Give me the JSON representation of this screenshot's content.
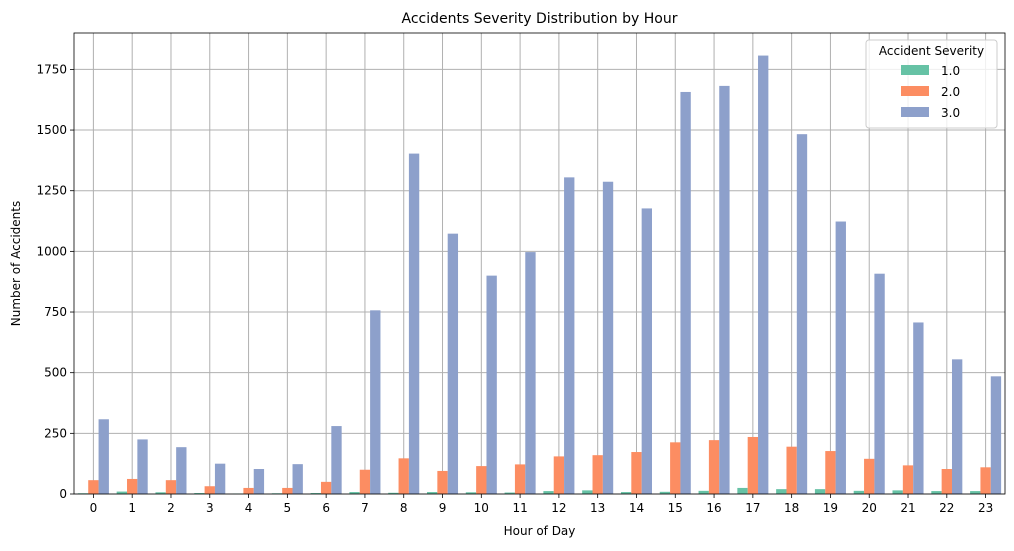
{
  "chart_data": {
    "type": "bar",
    "title": "Accidents Severity Distribution by Hour",
    "xlabel": "Hour of Day",
    "ylabel": "Number of Accidents",
    "categories": [
      "0",
      "1",
      "2",
      "3",
      "4",
      "5",
      "6",
      "7",
      "8",
      "9",
      "10",
      "11",
      "12",
      "13",
      "14",
      "15",
      "16",
      "17",
      "18",
      "19",
      "20",
      "21",
      "22",
      "23"
    ],
    "ylim": [
      0,
      1900
    ],
    "yticks": [
      0,
      250,
      500,
      750,
      1000,
      1250,
      1500,
      1750
    ],
    "grid": true,
    "legend": {
      "title": "Accident Severity",
      "placement": "top-right"
    },
    "series": [
      {
        "name": "1.0",
        "color": "#66c2a5",
        "values": [
          3,
          10,
          7,
          4,
          2,
          3,
          4,
          8,
          5,
          8,
          7,
          6,
          12,
          15,
          8,
          9,
          13,
          25,
          20,
          20,
          13,
          15,
          12,
          12
        ]
      },
      {
        "name": "2.0",
        "color": "#fc8d62",
        "values": [
          57,
          62,
          57,
          32,
          25,
          25,
          50,
          100,
          147,
          95,
          115,
          122,
          155,
          160,
          173,
          213,
          222,
          235,
          195,
          177,
          145,
          118,
          103,
          110
        ]
      },
      {
        "name": "3.0",
        "color": "#8da0cb",
        "values": [
          308,
          225,
          193,
          125,
          103,
          123,
          280,
          757,
          1403,
          1073,
          900,
          997,
          1305,
          1287,
          1177,
          1657,
          1682,
          1807,
          1483,
          1123,
          908,
          707,
          555,
          485
        ]
      }
    ]
  }
}
